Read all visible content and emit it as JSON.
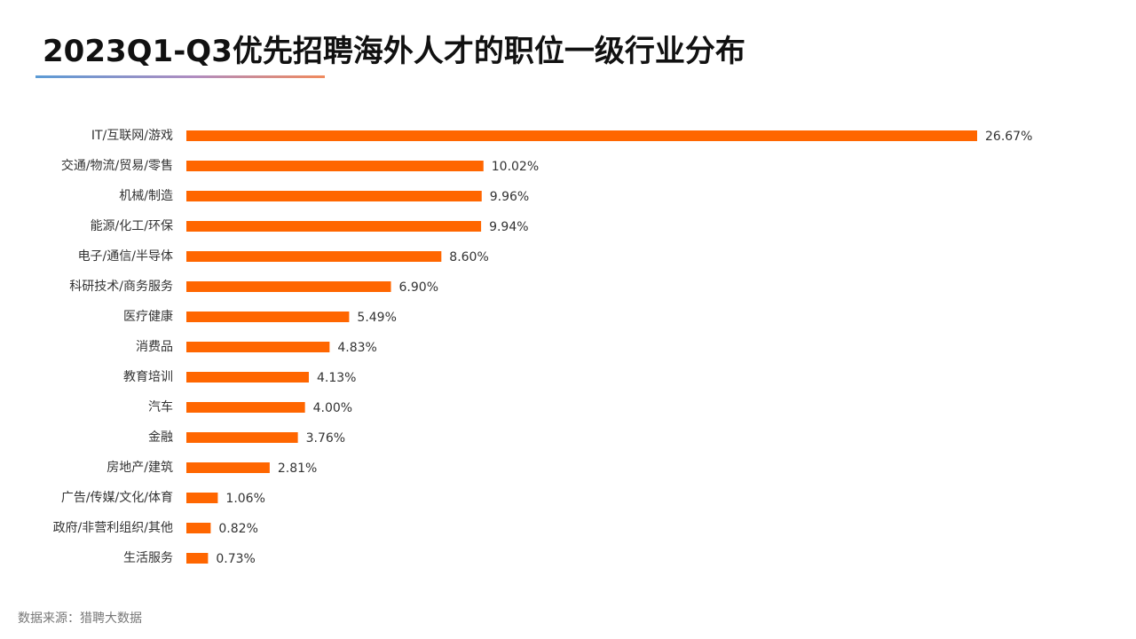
{
  "header": {
    "title": "2023Q1-Q3优先招聘海外人才的职位一级行业分布"
  },
  "footer": {
    "source": "数据来源：猎聘大数据"
  },
  "colors": {
    "bar": "#ff6600",
    "text": "#333333"
  },
  "chart_data": {
    "type": "bar",
    "orientation": "horizontal",
    "title": "2023Q1-Q3优先招聘海外人才的职位一级行业分布",
    "xlabel": "",
    "ylabel": "",
    "xlim": [
      0,
      26.67
    ],
    "grid": false,
    "categories": [
      "IT/互联网/游戏",
      "交通/物流/贸易/零售",
      "机械/制造",
      "能源/化工/环保",
      "电子/通信/半导体",
      "科研技术/商务服务",
      "医疗健康",
      "消费品",
      "教育培训",
      "汽车",
      "金融",
      "房地产/建筑",
      "广告/传媒/文化/体育",
      "政府/非营利组织/其他",
      "生活服务"
    ],
    "values": [
      26.67,
      10.02,
      9.96,
      9.94,
      8.6,
      6.9,
      5.49,
      4.83,
      4.13,
      4.0,
      3.76,
      2.81,
      1.06,
      0.82,
      0.73
    ],
    "value_labels": [
      "26.67%",
      "10.02%",
      "9.96%",
      "9.94%",
      "8.60%",
      "6.90%",
      "5.49%",
      "4.83%",
      "4.13%",
      "4.00%",
      "3.76%",
      "2.81%",
      "1.06%",
      "0.82%",
      "0.73%"
    ]
  }
}
